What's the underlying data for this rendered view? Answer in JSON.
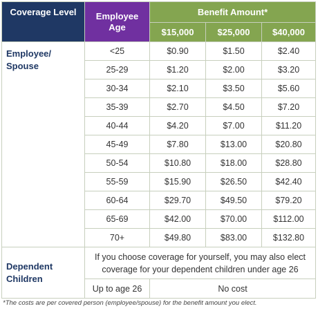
{
  "header": {
    "coverage_level": "Coverage Level",
    "employee_age": "Employee\nAge",
    "benefit_amount": "Benefit Amount*",
    "amounts": [
      "$15,000",
      "$25,000",
      "$40,000"
    ]
  },
  "table": {
    "section": "Employee/\nSpouse",
    "rows": [
      [
        "<25",
        "$0.90",
        "$1.50",
        "$2.40"
      ],
      [
        "25-29",
        "$1.20",
        "$2.00",
        "$3.20"
      ],
      [
        "30-34",
        "$2.10",
        "$3.50",
        "$5.60"
      ],
      [
        "35-39",
        "$2.70",
        "$4.50",
        "$7.20"
      ],
      [
        "40-44",
        "$4.20",
        "$7.00",
        "$11.20"
      ],
      [
        "45-49",
        "$7.80",
        "$13.00",
        "$20.80"
      ],
      [
        "50-54",
        "$10.80",
        "$18.00",
        "$28.80"
      ],
      [
        "55-59",
        "$15.90",
        "$26.50",
        "$42.40"
      ],
      [
        "60-64",
        "$29.70",
        "$49.50",
        "$79.20"
      ],
      [
        "65-69",
        "$42.00",
        "$70.00",
        "$112.00"
      ],
      [
        "70+",
        "$49.80",
        "$83.00",
        "$132.80"
      ]
    ]
  },
  "dependent": {
    "label": "Dependent\nChildren",
    "note": "If you choose coverage for yourself, you may also elect coverage for your dependent children under age 26",
    "age": "Up to age 26",
    "cost": "No cost"
  },
  "footnote": "*The costs are per covered person (employee/spouse) for the benefit amount you elect."
}
